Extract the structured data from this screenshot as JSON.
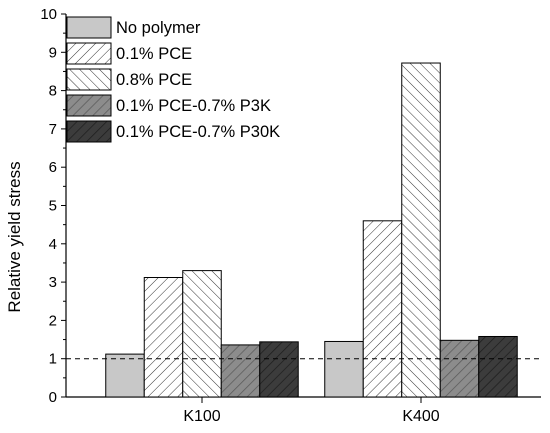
{
  "chart_data": {
    "type": "bar",
    "categories": [
      "K100",
      "K400"
    ],
    "series": [
      {
        "name": "No polymer",
        "values": [
          1.12,
          1.45
        ],
        "fill": "#c8c8c8",
        "pattern": "solid"
      },
      {
        "name": "0.1% PCE",
        "values": [
          3.12,
          4.6
        ],
        "fill": "#ffffff",
        "pattern": "hatch-forward"
      },
      {
        "name": "0.8% PCE",
        "values": [
          3.3,
          8.72
        ],
        "fill": "#ffffff",
        "pattern": "hatch-backward"
      },
      {
        "name": "0.1% PCE-0.7% P3K",
        "values": [
          1.36,
          1.48
        ],
        "fill": "#8c8c8c",
        "pattern": "hatch-forward-dark"
      },
      {
        "name": "0.1% PCE-0.7% P30K",
        "values": [
          1.44,
          1.58
        ],
        "fill": "#404040",
        "pattern": "hatch-forward-dark"
      }
    ],
    "ylabel": "Relative yield stress",
    "xlabel": "",
    "ylim": [
      0,
      10
    ],
    "yticks": [
      0,
      1,
      2,
      3,
      4,
      5,
      6,
      7,
      8,
      9,
      10
    ],
    "reference_line": {
      "y": 1,
      "style": "dashed"
    },
    "legend_position": "top-left",
    "grid": false
  }
}
